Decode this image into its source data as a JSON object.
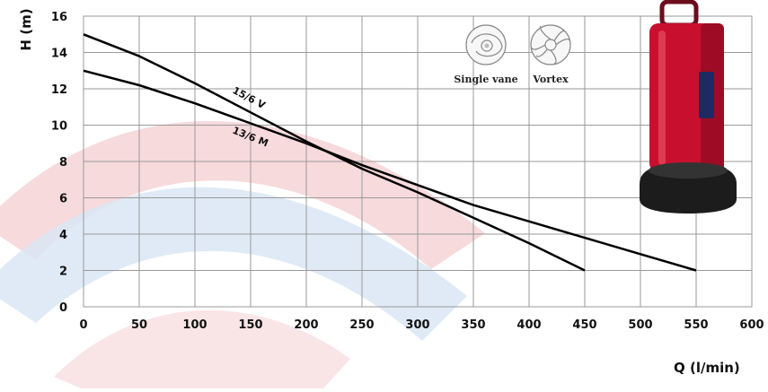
{
  "chart_data": {
    "type": "line",
    "xlabel": "Q (l/min)",
    "ylabel": "H (m)",
    "xlim": [
      0,
      600
    ],
    "ylim": [
      0,
      16
    ],
    "xticks": [
      0,
      50,
      100,
      150,
      200,
      250,
      300,
      350,
      400,
      450,
      500,
      550,
      600
    ],
    "yticks": [
      0,
      2,
      4,
      6,
      8,
      10,
      12,
      14,
      16
    ],
    "grid": true,
    "series": [
      {
        "name": "15/6 V",
        "color": "#000000",
        "x": [
          0,
          50,
          100,
          150,
          200,
          250,
          300,
          350,
          400,
          450
        ],
        "y": [
          15.0,
          13.8,
          12.3,
          10.7,
          9.1,
          7.6,
          6.3,
          4.9,
          3.5,
          2.0
        ]
      },
      {
        "name": "13/6 M",
        "color": "#000000",
        "x": [
          0,
          50,
          100,
          150,
          200,
          250,
          300,
          350,
          400,
          450,
          500,
          550
        ],
        "y": [
          13.0,
          12.2,
          11.2,
          10.1,
          9.0,
          7.8,
          6.7,
          5.6,
          4.7,
          3.8,
          2.9,
          2.0
        ]
      }
    ],
    "impeller_types": [
      "Single vane",
      "Vortex"
    ],
    "product_image": "red-submersible-pump",
    "background_colors": {
      "swoosh_red": "#f6d3d6",
      "swoosh_blue": "#d9e6f4",
      "grid": "#9a9a9a"
    }
  }
}
